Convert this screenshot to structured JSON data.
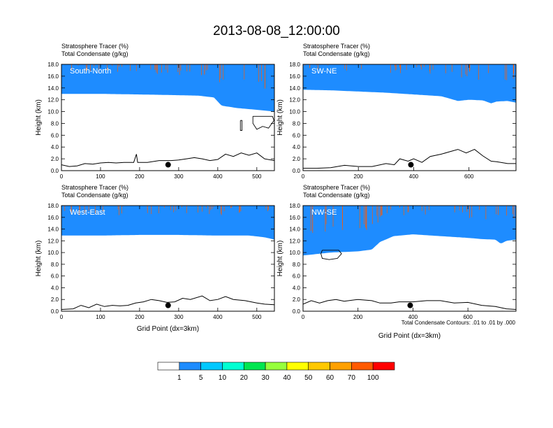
{
  "chart_data": {
    "type": "area",
    "title": "2013-08-08_12:00:00",
    "colorbar": {
      "labels": [
        "1",
        "5",
        "10",
        "20",
        "30",
        "40",
        "50",
        "60",
        "70",
        "100"
      ],
      "colors": [
        "#ffffff",
        "#1e8cff",
        "#00c8ff",
        "#00ffd2",
        "#00e650",
        "#96ff3c",
        "#ffff00",
        "#ffc800",
        "#ffa000",
        "#ff5a00",
        "#ff0000"
      ]
    },
    "footnote": "Total Condensate Contours: .01 to .01 by .000",
    "panels": [
      {
        "label": "South-North",
        "subtitle_line1": "Stratosphere Tracer   (%)",
        "subtitle_line2": "Total Condensate   (g/kg)",
        "ylabel": "Height (km)",
        "xlabel": "",
        "xlim": [
          0,
          545
        ],
        "ylim": [
          0,
          18
        ],
        "xticks": [
          0,
          100,
          200,
          300,
          400,
          500
        ],
        "yticks": [
          "0.0",
          "2.0",
          "4.0",
          "6.0",
          "8.0",
          "10.0",
          "12.0",
          "14.0",
          "16.0",
          "18.0"
        ],
        "tracer_floor_km": [
          [
            0,
            13.0
          ],
          [
            100,
            13.0
          ],
          [
            200,
            12.9
          ],
          [
            280,
            12.8
          ],
          [
            350,
            12.7
          ],
          [
            390,
            12.4
          ],
          [
            410,
            11.0
          ],
          [
            450,
            10.6
          ],
          [
            500,
            10.3
          ],
          [
            545,
            10.0
          ]
        ],
        "terrain_km": [
          [
            0,
            1.0
          ],
          [
            20,
            0.7
          ],
          [
            40,
            0.8
          ],
          [
            60,
            1.2
          ],
          [
            80,
            1.1
          ],
          [
            100,
            1.3
          ],
          [
            120,
            1.4
          ],
          [
            140,
            1.3
          ],
          [
            160,
            1.4
          ],
          [
            185,
            1.4
          ],
          [
            192,
            2.8
          ],
          [
            195,
            1.4
          ],
          [
            220,
            1.4
          ],
          [
            250,
            1.7
          ],
          [
            280,
            1.7
          ],
          [
            300,
            1.8
          ],
          [
            320,
            2.0
          ],
          [
            340,
            2.2
          ],
          [
            360,
            2.0
          ],
          [
            380,
            1.7
          ],
          [
            400,
            1.9
          ],
          [
            420,
            2.8
          ],
          [
            440,
            2.4
          ],
          [
            460,
            3.0
          ],
          [
            480,
            2.6
          ],
          [
            500,
            3.0
          ],
          [
            520,
            2.0
          ],
          [
            545,
            1.7
          ]
        ],
        "marker_x": 273,
        "marker_y_km": 1.0,
        "condensate_contours": [
          [
            [
              458,
              8.5
            ],
            [
              462,
              8.5
            ],
            [
              462,
              6.8
            ],
            [
              458,
              6.8
            ],
            [
              458,
              8.5
            ]
          ],
          [
            [
              490,
              9.2
            ],
            [
              540,
              9.2
            ],
            [
              544,
              8.5
            ],
            [
              530,
              7.2
            ],
            [
              515,
              7.5
            ],
            [
              500,
              7.0
            ],
            [
              490,
              8.0
            ],
            [
              490,
              9.2
            ]
          ]
        ]
      },
      {
        "label": "SW-NE",
        "subtitle_line1": "Stratosphere Tracer   (%)",
        "subtitle_line2": "Total Condensate   (g/kg)",
        "ylabel": "Height (km)",
        "xlabel": "",
        "xlim": [
          0,
          770
        ],
        "ylim": [
          0,
          18
        ],
        "xticks": [
          0,
          200,
          400,
          600
        ],
        "yticks": [
          "0.0",
          "2.0",
          "4.0",
          "6.0",
          "8.0",
          "10.0",
          "12.0",
          "14.0",
          "16.0",
          "18.0"
        ],
        "tracer_floor_km": [
          [
            0,
            13.7
          ],
          [
            100,
            13.6
          ],
          [
            200,
            13.4
          ],
          [
            300,
            13.2
          ],
          [
            400,
            12.9
          ],
          [
            500,
            12.6
          ],
          [
            560,
            11.8
          ],
          [
            600,
            12.0
          ],
          [
            650,
            11.9
          ],
          [
            680,
            11.4
          ],
          [
            700,
            11.7
          ],
          [
            740,
            11.8
          ],
          [
            770,
            11.5
          ]
        ],
        "terrain_km": [
          [
            0,
            0.4
          ],
          [
            50,
            0.4
          ],
          [
            100,
            0.5
          ],
          [
            150,
            0.9
          ],
          [
            200,
            0.7
          ],
          [
            250,
            0.7
          ],
          [
            300,
            1.2
          ],
          [
            330,
            1.0
          ],
          [
            350,
            2.0
          ],
          [
            380,
            1.6
          ],
          [
            400,
            2.0
          ],
          [
            430,
            1.4
          ],
          [
            460,
            2.4
          ],
          [
            500,
            2.8
          ],
          [
            530,
            3.2
          ],
          [
            560,
            3.6
          ],
          [
            590,
            3.0
          ],
          [
            620,
            3.6
          ],
          [
            650,
            2.5
          ],
          [
            680,
            1.6
          ],
          [
            700,
            1.5
          ],
          [
            740,
            1.2
          ],
          [
            770,
            1.2
          ]
        ],
        "marker_x": 390,
        "marker_y_km": 1.0,
        "condensate_contours": []
      },
      {
        "label": "West-East",
        "subtitle_line1": "Stratosphere Tracer   (%)",
        "subtitle_line2": "Total Condensate   (g/kg)",
        "ylabel": "Height (km)",
        "xlabel": "Grid Point (dx=3km)",
        "xlim": [
          0,
          545
        ],
        "ylim": [
          0,
          18
        ],
        "xticks": [
          0,
          100,
          200,
          300,
          400,
          500
        ],
        "yticks": [
          "0.0",
          "2.0",
          "4.0",
          "6.0",
          "8.0",
          "10.0",
          "12.0",
          "14.0",
          "16.0",
          "18.0"
        ],
        "tracer_floor_km": [
          [
            0,
            12.9
          ],
          [
            100,
            12.9
          ],
          [
            200,
            13.0
          ],
          [
            300,
            13.0
          ],
          [
            400,
            12.9
          ],
          [
            480,
            12.9
          ],
          [
            520,
            12.6
          ],
          [
            545,
            12.2
          ]
        ],
        "terrain_km": [
          [
            0,
            0.3
          ],
          [
            30,
            0.4
          ],
          [
            50,
            1.0
          ],
          [
            70,
            0.6
          ],
          [
            90,
            1.2
          ],
          [
            110,
            0.8
          ],
          [
            130,
            1.0
          ],
          [
            150,
            0.9
          ],
          [
            170,
            1.0
          ],
          [
            190,
            1.4
          ],
          [
            210,
            1.6
          ],
          [
            230,
            2.0
          ],
          [
            250,
            1.8
          ],
          [
            270,
            1.5
          ],
          [
            290,
            1.6
          ],
          [
            310,
            2.2
          ],
          [
            330,
            2.0
          ],
          [
            360,
            2.6
          ],
          [
            380,
            1.8
          ],
          [
            400,
            2.0
          ],
          [
            420,
            2.5
          ],
          [
            440,
            2.0
          ],
          [
            470,
            1.8
          ],
          [
            500,
            1.4
          ],
          [
            520,
            1.2
          ],
          [
            545,
            1.1
          ]
        ],
        "marker_x": 273,
        "marker_y_km": 1.0,
        "condensate_contours": []
      },
      {
        "label": "NW-SE",
        "subtitle_line1": "Stratosphere Tracer   (%)",
        "subtitle_line2": "Total Condensate   (g/kg)",
        "ylabel": "Height (km)",
        "xlabel": "Grid Point (dx=3km)",
        "xlim": [
          0,
          775
        ],
        "ylim": [
          0,
          18
        ],
        "xticks": [
          0,
          200,
          400,
          600
        ],
        "yticks": [
          "0.0",
          "2.0",
          "4.0",
          "6.0",
          "8.0",
          "10.0",
          "12.0",
          "14.0",
          "16.0",
          "18.0"
        ],
        "tracer_floor_km": [
          [
            0,
            9.5
          ],
          [
            100,
            10.0
          ],
          [
            200,
            10.2
          ],
          [
            250,
            10.5
          ],
          [
            280,
            11.8
          ],
          [
            330,
            12.8
          ],
          [
            400,
            13.1
          ],
          [
            500,
            12.8
          ],
          [
            600,
            12.5
          ],
          [
            650,
            12.3
          ],
          [
            700,
            12.2
          ],
          [
            720,
            11.5
          ],
          [
            740,
            12.0
          ],
          [
            775,
            12.2
          ]
        ],
        "terrain_km": [
          [
            0,
            1.2
          ],
          [
            30,
            1.8
          ],
          [
            60,
            1.4
          ],
          [
            90,
            1.8
          ],
          [
            120,
            2.0
          ],
          [
            150,
            1.7
          ],
          [
            200,
            2.0
          ],
          [
            250,
            1.8
          ],
          [
            280,
            1.4
          ],
          [
            320,
            1.4
          ],
          [
            350,
            1.6
          ],
          [
            400,
            1.6
          ],
          [
            450,
            1.8
          ],
          [
            500,
            1.8
          ],
          [
            550,
            1.4
          ],
          [
            600,
            1.5
          ],
          [
            650,
            1.0
          ],
          [
            700,
            0.8
          ],
          [
            740,
            0.4
          ],
          [
            775,
            0.3
          ]
        ],
        "marker_x": 390,
        "marker_y_km": 1.0,
        "condensate_contours": [
          [
            [
              70,
              10.4
            ],
            [
              130,
              10.4
            ],
            [
              140,
              9.8
            ],
            [
              125,
              9.0
            ],
            [
              95,
              8.8
            ],
            [
              70,
              9.0
            ],
            [
              65,
              9.8
            ],
            [
              70,
              10.4
            ]
          ]
        ]
      }
    ]
  }
}
